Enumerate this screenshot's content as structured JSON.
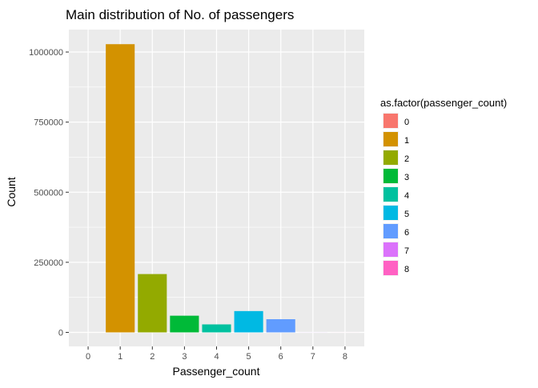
{
  "chart_data": {
    "type": "bar",
    "title": "Main distribution of No. of passengers",
    "xlabel": "Passenger_count",
    "ylabel": "Count",
    "categories": [
      "0",
      "1",
      "2",
      "3",
      "4",
      "5",
      "6",
      "7",
      "8"
    ],
    "values": [
      40,
      1028000,
      208000,
      59500,
      28500,
      76000,
      47000,
      200,
      100
    ],
    "colors": [
      "#F8766D",
      "#D39200",
      "#93AA00",
      "#00BA38",
      "#00C19F",
      "#00B9E3",
      "#619CFF",
      "#DB72FB",
      "#FF61C3"
    ],
    "ylim": [
      -50000,
      1080000
    ],
    "y_ticks": [
      0,
      250000,
      500000,
      750000,
      1000000
    ],
    "y_tick_labels": [
      "0",
      "250000",
      "500000",
      "750000",
      "1000000"
    ],
    "grid": true,
    "panel_background": "#EBEBEB",
    "legend": {
      "title": "as.factor(passenger_count)",
      "position": "right",
      "entries": [
        "0",
        "1",
        "2",
        "3",
        "4",
        "5",
        "6",
        "7",
        "8"
      ]
    }
  }
}
